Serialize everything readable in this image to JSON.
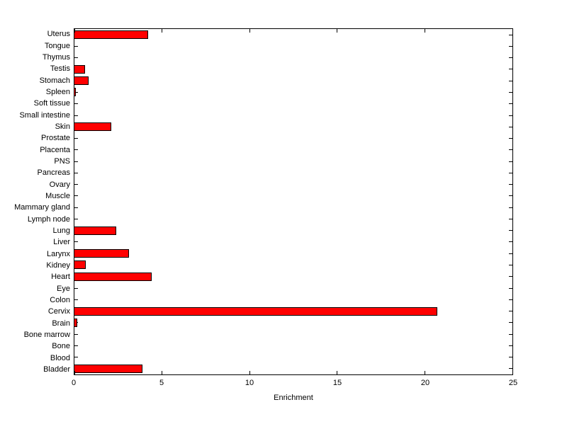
{
  "figure": {
    "background": "#ffffff",
    "bar_color": "#ff0000",
    "bar_edge_color": "#000000",
    "axis_color": "#000000"
  },
  "chart_data": {
    "type": "bar",
    "orientation": "horizontal",
    "title": "",
    "xlabel": "Enrichment",
    "ylabel": "",
    "xlim": [
      0,
      25
    ],
    "x_ticks": [
      0,
      5,
      10,
      15,
      20,
      25
    ],
    "grid": false,
    "legend": "none",
    "categories": [
      "Uterus",
      "Tongue",
      "Thymus",
      "Testis",
      "Stomach",
      "Spleen",
      "Soft tissue",
      "Small intestine",
      "Skin",
      "Prostate",
      "Placenta",
      "PNS",
      "Pancreas",
      "Ovary",
      "Muscle",
      "Mammary gland",
      "Lymph node",
      "Lung",
      "Liver",
      "Larynx",
      "Kidney",
      "Heart",
      "Eye",
      "Colon",
      "Cervix",
      "Brain",
      "Bone marrow",
      "Bone",
      "Blood",
      "Bladder"
    ],
    "values": [
      4.2,
      0,
      0,
      0.6,
      0.8,
      0.1,
      0,
      0,
      2.1,
      0,
      0,
      0,
      0,
      0,
      0,
      0,
      0,
      2.4,
      0,
      3.1,
      0.65,
      4.4,
      0,
      0,
      20.7,
      0.15,
      0,
      0,
      0,
      3.9
    ]
  }
}
